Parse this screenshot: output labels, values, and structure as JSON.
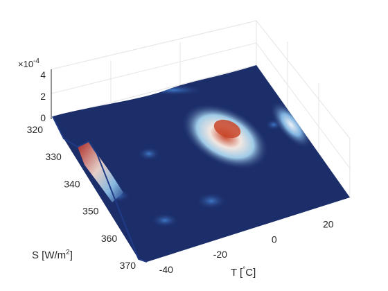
{
  "chart_data": {
    "type": "surface",
    "view": "3d-surface",
    "xlabel_prefix": "T [",
    "xlabel_deg": "°",
    "xlabel_suffix": "C]",
    "ylabel_prefix": "S [W/m",
    "ylabel_sup": "2",
    "ylabel_suffix": "]",
    "z_exponent_base": "×10",
    "z_exponent_power": "-4",
    "x_ticks": [
      "-40",
      "-20",
      "0",
      "20"
    ],
    "y_ticks": [
      "320",
      "330",
      "340",
      "350",
      "360",
      "370"
    ],
    "z_ticks": [
      "0",
      "2",
      "4"
    ],
    "xlim": [
      -42,
      28
    ],
    "ylim": [
      320,
      370
    ],
    "zlim": [
      0,
      4
    ],
    "grid": true,
    "colormap": "blue-white-red",
    "peaks": [
      {
        "T": -8,
        "S": 338,
        "z": 2.2
      },
      {
        "T": 18,
        "S": 332,
        "z": 1.0
      },
      {
        "T": -38,
        "S": 343,
        "z": 3.2
      }
    ],
    "peak_series": [
      {
        "x": -8,
        "y": 338,
        "values": [
          0,
          1.1,
          2.2,
          1.1,
          0
        ]
      },
      {
        "x": 18,
        "y": 332,
        "values": [
          0,
          0.5,
          1.0,
          0.5,
          0
        ]
      },
      {
        "x": -38,
        "y": 343,
        "values": [
          0,
          1.6,
          3.2,
          1.6,
          0
        ]
      }
    ]
  }
}
